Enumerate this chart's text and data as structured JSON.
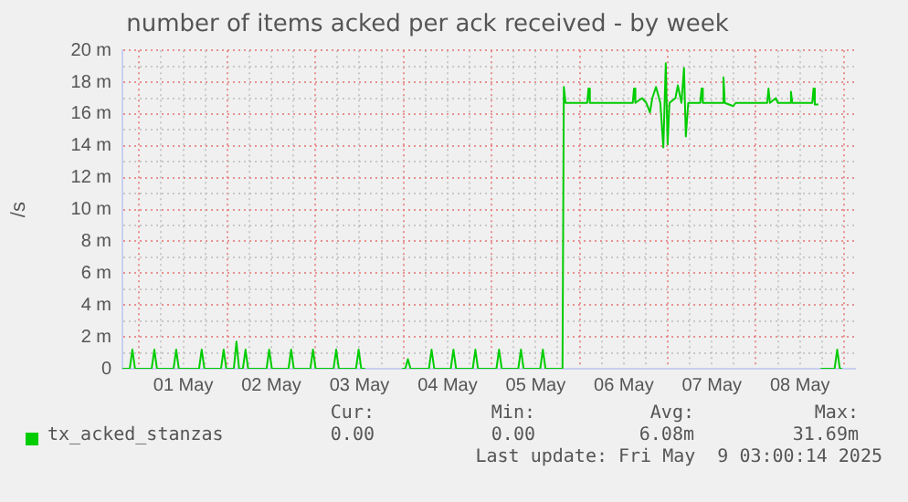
{
  "chart_data": {
    "type": "line",
    "title": "number of items acked per ack received - by week",
    "ylabel": "/s",
    "x": [
      "2025-04-30T19:26",
      "2025-04-30T21:26",
      "2025-04-30T22:09",
      "2025-04-30T22:52",
      "2025-05-01T03:24",
      "2025-05-01T04:08",
      "2025-05-01T04:51",
      "2025-05-01T09:22",
      "2025-05-01T10:05",
      "2025-05-01T10:48",
      "2025-05-01T16:19",
      "2025-05-01T17:02",
      "2025-05-01T17:46",
      "2025-05-01T22:18",
      "2025-05-01T23:01",
      "2025-05-01T23:44",
      "2025-05-02T01:47",
      "2025-05-02T02:30",
      "2025-05-02T03:13",
      "2025-05-02T04:15",
      "2025-05-02T04:58",
      "2025-05-02T05:41",
      "2025-05-02T10:42",
      "2025-05-02T11:25",
      "2025-05-02T12:09",
      "2025-05-02T16:41",
      "2025-05-02T17:24",
      "2025-05-02T18:07",
      "2025-05-02T22:38",
      "2025-05-02T23:21",
      "2025-05-03T00:04",
      "2025-05-03T04:57",
      "2025-05-03T05:40",
      "2025-05-03T06:23",
      "2025-05-03T11:04",
      "2025-05-03T11:47",
      "2025-05-03T12:30",
      "2025-05-03T13:36",
      "2025-05-03T14:24",
      "2025-05-03T23:33",
      "2025-05-04T00:29",
      "2025-05-04T01:12",
      "2025-05-04T01:55",
      "2025-05-04T06:56",
      "2025-05-04T07:39",
      "2025-05-04T08:23",
      "2025-05-04T12:53",
      "2025-05-04T13:36",
      "2025-05-04T14:20",
      "2025-05-04T18:52",
      "2025-05-04T19:35",
      "2025-05-04T20:18",
      "2025-05-05T01:19",
      "2025-05-05T02:02",
      "2025-05-05T02:46",
      "2025-05-05T07:16",
      "2025-05-05T08:00",
      "2025-05-05T08:43",
      "2025-05-05T13:15",
      "2025-05-05T13:58",
      "2025-05-05T14:41",
      "2025-05-05T19:19",
      "2025-05-05T19:41",
      "2025-05-05T20:10",
      "2025-05-06T02:02",
      "2025-05-06T02:24",
      "2025-05-06T02:46",
      "2025-05-06T14:27",
      "2025-05-06T14:48",
      "2025-05-06T15:10",
      "2025-05-06T17:00",
      "2025-05-06T18:09",
      "2025-05-06T19:08",
      "2025-05-06T19:47",
      "2025-05-06T20:47",
      "2025-05-06T21:58",
      "2025-05-06T22:47",
      "2025-05-06T23:27",
      "2025-05-06T23:57",
      "2025-05-07T00:27",
      "2025-05-07T02:05",
      "2025-05-07T02:44",
      "2025-05-07T03:43",
      "2025-05-07T04:25",
      "2025-05-07T04:55",
      "2025-05-07T05:34",
      "2025-05-07T08:50",
      "2025-05-07T09:12",
      "2025-05-07T09:33",
      "2025-05-07T14:48",
      "2025-05-07T15:10",
      "2025-05-07T15:32",
      "2025-05-07T17:50",
      "2025-05-07T18:29",
      "2025-05-08T03:04",
      "2025-05-08T03:26",
      "2025-05-08T03:48",
      "2025-05-08T05:25",
      "2025-05-08T06:00",
      "2025-05-08T09:12",
      "2025-05-08T09:33",
      "2025-05-08T09:55",
      "2025-05-08T15:20",
      "2025-05-08T15:42",
      "2025-05-08T16:03",
      "2025-05-08T17:00",
      "2025-05-08T17:17",
      "2025-05-08T17:36",
      "2025-05-08T21:26",
      "2025-05-08T22:09",
      "2025-05-08T22:52",
      "2025-05-08T23:31"
    ],
    "series": [
      {
        "name": "tx_acked_stanzas",
        "color": "#00cc00",
        "values": [
          0,
          0,
          1.2,
          0,
          0,
          1.2,
          0,
          0,
          1.2,
          0,
          0,
          1.2,
          0,
          0,
          1.2,
          0,
          0,
          1.7,
          0,
          0,
          1.2,
          0,
          0,
          1.2,
          0,
          0,
          1.2,
          0,
          0,
          1.2,
          0,
          0,
          1.2,
          0,
          0,
          1.2,
          0,
          0,
          null,
          0,
          0,
          0.6,
          0,
          0,
          1.2,
          0,
          0,
          1.2,
          0,
          0,
          1.2,
          0,
          0,
          1.2,
          0,
          0,
          1.2,
          0,
          0,
          1.2,
          0,
          0,
          17.7,
          16.7,
          16.7,
          17.6,
          16.7,
          16.7,
          17.6,
          16.7,
          17.0,
          16.7,
          16.1,
          17.0,
          17.7,
          16.7,
          13.9,
          19.2,
          14.1,
          16.7,
          17.0,
          17.8,
          16.7,
          18.9,
          14.6,
          16.7,
          16.7,
          17.6,
          16.7,
          16.7,
          18.3,
          16.7,
          16.5,
          16.7,
          16.7,
          17.6,
          16.7,
          17.0,
          16.7,
          16.7,
          17.4,
          16.7,
          16.7,
          17.6,
          16.6,
          16.6,
          null,
          0,
          0,
          1.2,
          0,
          0
        ]
      }
    ],
    "xlim": [
      "2025-04-30T19:26",
      "2025-05-09T03:00"
    ],
    "xticks": [
      {
        "value": "2025-05-01T00:00",
        "label": null
      },
      {
        "value": "2025-05-01T06:00",
        "label": null
      },
      {
        "value": "2025-05-01T12:00",
        "label": "01 May"
      },
      {
        "value": "2025-05-01T18:00",
        "label": null
      },
      {
        "value": "2025-05-02T00:00",
        "label": null
      },
      {
        "value": "2025-05-02T06:00",
        "label": null
      },
      {
        "value": "2025-05-02T12:00",
        "label": "02 May"
      },
      {
        "value": "2025-05-02T18:00",
        "label": null
      },
      {
        "value": "2025-05-03T00:00",
        "label": null
      },
      {
        "value": "2025-05-03T06:00",
        "label": null
      },
      {
        "value": "2025-05-03T12:00",
        "label": "03 May"
      },
      {
        "value": "2025-05-03T18:00",
        "label": null
      },
      {
        "value": "2025-05-04T00:00",
        "label": null
      },
      {
        "value": "2025-05-04T06:00",
        "label": null
      },
      {
        "value": "2025-05-04T12:00",
        "label": "04 May"
      },
      {
        "value": "2025-05-04T18:00",
        "label": null
      },
      {
        "value": "2025-05-05T00:00",
        "label": null
      },
      {
        "value": "2025-05-05T06:00",
        "label": null
      },
      {
        "value": "2025-05-05T12:00",
        "label": "05 May"
      },
      {
        "value": "2025-05-05T18:00",
        "label": null
      },
      {
        "value": "2025-05-06T00:00",
        "label": null
      },
      {
        "value": "2025-05-06T06:00",
        "label": null
      },
      {
        "value": "2025-05-06T12:00",
        "label": "06 May"
      },
      {
        "value": "2025-05-06T18:00",
        "label": null
      },
      {
        "value": "2025-05-07T00:00",
        "label": null
      },
      {
        "value": "2025-05-07T06:00",
        "label": null
      },
      {
        "value": "2025-05-07T12:00",
        "label": "07 May"
      },
      {
        "value": "2025-05-07T18:00",
        "label": null
      },
      {
        "value": "2025-05-08T00:00",
        "label": null
      },
      {
        "value": "2025-05-08T06:00",
        "label": null
      },
      {
        "value": "2025-05-08T12:00",
        "label": "08 May"
      },
      {
        "value": "2025-05-08T18:00",
        "label": null
      },
      {
        "value": "2025-05-09T00:00",
        "label": null
      }
    ],
    "ylim": [
      0,
      20
    ],
    "yticks": [
      0,
      {
        "value": 1,
        "label": null
      },
      {
        "value": 2,
        "label": "2 m"
      },
      {
        "value": 3,
        "label": null
      },
      {
        "value": 4,
        "label": "4 m"
      },
      {
        "value": 5,
        "label": null
      },
      {
        "value": 6,
        "label": "6 m"
      },
      {
        "value": 7,
        "label": null
      },
      {
        "value": 8,
        "label": "8 m"
      },
      {
        "value": 9,
        "label": null
      },
      {
        "value": 10,
        "label": "10 m"
      },
      {
        "value": 11,
        "label": null
      },
      {
        "value": 12,
        "label": "12 m"
      },
      {
        "value": 13,
        "label": null
      },
      {
        "value": 14,
        "label": "14 m"
      },
      {
        "value": 15,
        "label": null
      },
      {
        "value": 16,
        "label": "16 m"
      },
      {
        "value": 17,
        "label": null
      },
      {
        "value": 18,
        "label": "18 m"
      },
      {
        "value": 19,
        "label": null
      },
      {
        "value": 20,
        "label": "20 m"
      }
    ],
    "grid": true,
    "legend": "bottom",
    "annotations": [
      "Cur:",
      "Min:",
      "Avg:",
      "Max:",
      "0.00",
      "0.00",
      "6.08m",
      "31.69m",
      "Last update: Fri May  9 03:00:14 2025"
    ]
  }
}
